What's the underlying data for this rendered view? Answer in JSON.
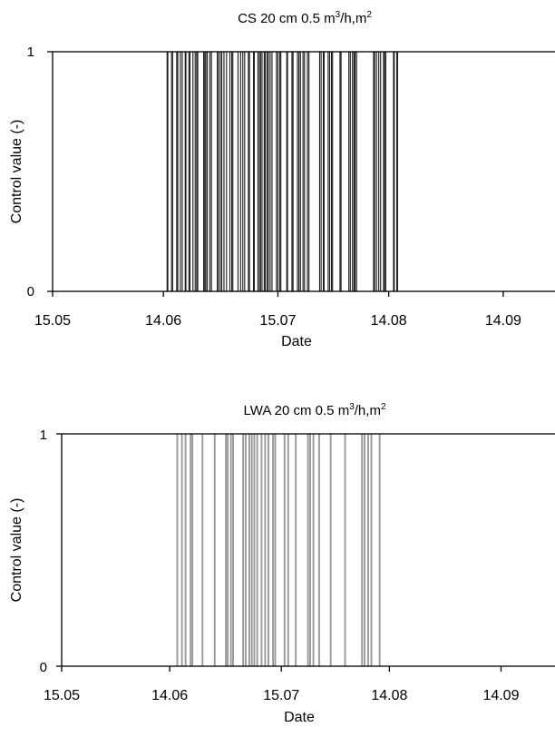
{
  "chart_data": [
    {
      "type": "bar",
      "title_main": "CS  20 cm  0.5 m",
      "title_sup1": "3",
      "title_mid": "/h,m",
      "title_sup2": "2",
      "xlabel": "Date",
      "ylabel": "Control value (-)",
      "x_ticks": [
        "15.05",
        "14.06",
        "15.07",
        "14.08",
        "14.09"
      ],
      "y_ticks": [
        "0",
        "1"
      ],
      "ylim": [
        0,
        1
      ],
      "xlim_days_note": "",
      "bar_color": "#1a1a1a",
      "on_intervals": [
        [
          31.0,
          31.2
        ],
        [
          32.2,
          32.5
        ],
        [
          33.6,
          33.9
        ],
        [
          34.6,
          35.1
        ],
        [
          35.9,
          36.1
        ],
        [
          36.9,
          37.2
        ],
        [
          38.0,
          38.6
        ],
        [
          39.0,
          39.3
        ],
        [
          40.9,
          41.2
        ],
        [
          41.5,
          41.9
        ],
        [
          42.6,
          43.0
        ],
        [
          44.6,
          44.9
        ],
        [
          45.4,
          45.8
        ],
        [
          46.4,
          47.1
        ],
        [
          48.0,
          48.5
        ],
        [
          48.8,
          50.2
        ],
        [
          50.9,
          51.5
        ],
        [
          52.0,
          53.0
        ],
        [
          53.3,
          54.4
        ],
        [
          54.6,
          55.6
        ],
        [
          56.0,
          56.3
        ],
        [
          56.7,
          57.3
        ],
        [
          57.6,
          58.1
        ],
        [
          58.4,
          58.9
        ],
        [
          59.4,
          60.6
        ],
        [
          61.0,
          61.5
        ],
        [
          61.8,
          63.4
        ],
        [
          63.6,
          64.8
        ],
        [
          65.1,
          66.3
        ],
        [
          66.7,
          67.1
        ],
        [
          67.8,
          68.2
        ],
        [
          69.0,
          69.4
        ],
        [
          72.3,
          72.7
        ],
        [
          73.3,
          73.5
        ],
        [
          74.6,
          75.0
        ],
        [
          75.5,
          75.8
        ],
        [
          77.8,
          78.1
        ],
        [
          80.2,
          80.6
        ],
        [
          81.2,
          81.6
        ],
        [
          81.9,
          82.3
        ],
        [
          86.9,
          87.2
        ],
        [
          87.7,
          88.3
        ],
        [
          88.8,
          89.6
        ],
        [
          89.9,
          90.2
        ],
        [
          92.3,
          92.5
        ],
        [
          93.2,
          93.4
        ]
      ]
    },
    {
      "type": "bar",
      "title_main": "LWA  20 cm  0.5 m",
      "title_sup1": "3",
      "title_mid": "/h,m",
      "title_sup2": "2",
      "xlabel": "Date",
      "ylabel": "Control value (-)",
      "x_ticks": [
        "15.05",
        "14.06",
        "15.07",
        "14.08",
        "14.09"
      ],
      "y_ticks": [
        "0",
        "1"
      ],
      "ylim": [
        0,
        1
      ],
      "bar_color": "#9a9a9a",
      "on_intervals": [
        [
          32.0,
          32.2
        ],
        [
          33.3,
          33.5
        ],
        [
          34.3,
          34.5
        ],
        [
          35.7,
          35.9
        ],
        [
          36.2,
          36.4
        ],
        [
          39.0,
          39.2
        ],
        [
          42.4,
          42.6
        ],
        [
          45.5,
          45.7
        ],
        [
          46.0,
          46.2
        ],
        [
          46.9,
          47.1
        ],
        [
          47.5,
          47.7
        ],
        [
          50.3,
          50.5
        ],
        [
          51.0,
          51.2
        ],
        [
          52.0,
          52.2
        ],
        [
          52.7,
          52.9
        ],
        [
          53.4,
          53.6
        ],
        [
          54.2,
          54.4
        ],
        [
          55.4,
          55.6
        ],
        [
          56.4,
          56.6
        ],
        [
          57.3,
          57.5
        ],
        [
          58.6,
          58.8
        ],
        [
          59.2,
          59.4
        ],
        [
          61.8,
          62.0
        ],
        [
          62.8,
          63.0
        ],
        [
          64.9,
          65.1
        ],
        [
          68.3,
          68.5
        ],
        [
          68.9,
          69.1
        ],
        [
          69.8,
          70.0
        ],
        [
          71.4,
          71.6
        ],
        [
          74.6,
          74.8
        ],
        [
          78.6,
          78.8
        ],
        [
          83.3,
          83.5
        ],
        [
          84.0,
          84.2
        ],
        [
          85.0,
          85.2
        ],
        [
          85.9,
          86.1
        ],
        [
          88.2,
          88.4
        ]
      ]
    }
  ]
}
